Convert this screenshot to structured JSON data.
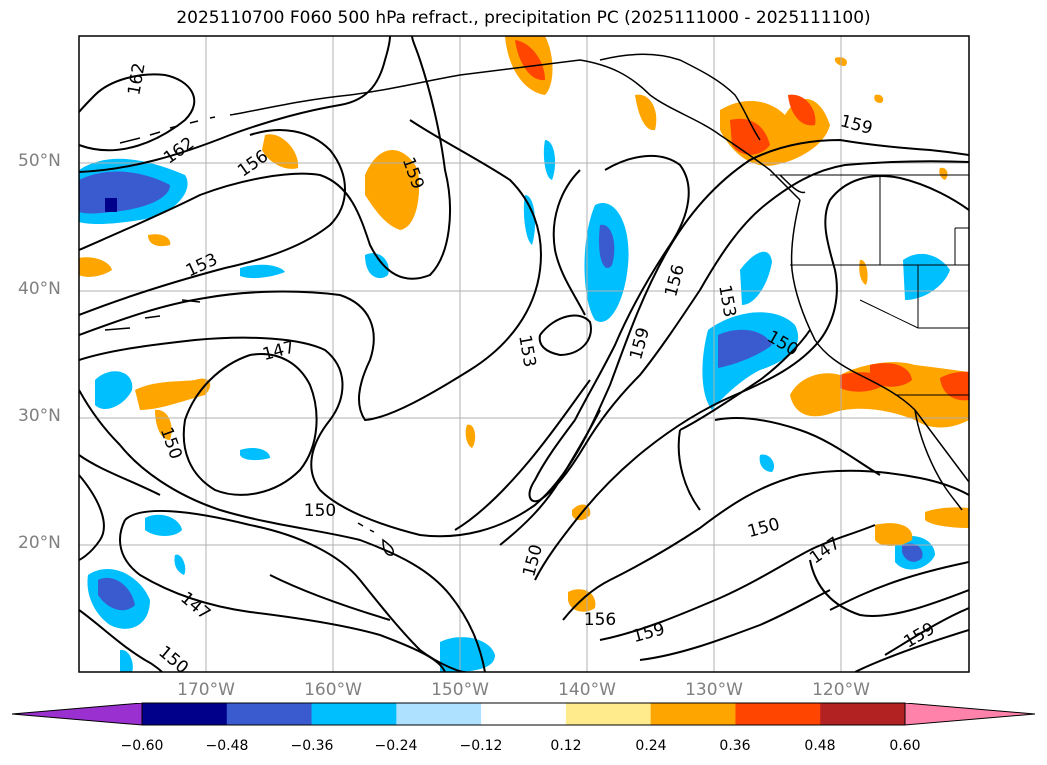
{
  "title": "2025110700 F060 500 hPa refract., precipitation PC (2025111000 - 2025111100)",
  "axes": {
    "lat_labels": [
      "50°N",
      "40°N",
      "30°N",
      "20°N"
    ],
    "lon_labels": [
      "170°W",
      "160°W",
      "150°W",
      "140°W",
      "130°W",
      "120°W"
    ]
  },
  "contour_labels": [
    "162",
    "162",
    "156",
    "159",
    "153",
    "147",
    "150",
    "153",
    "159",
    "156",
    "153",
    "150",
    "159",
    "150",
    "150",
    "147",
    "150",
    "156",
    "159",
    "159",
    "147",
    "150"
  ],
  "colorbar": {
    "colors": [
      "#9b30d0",
      "#00008b",
      "#3a5bd0",
      "#00bfff",
      "#aee0ff",
      "#ffffff",
      "#ffea8c",
      "#ffa500",
      "#ff4500",
      "#b22222",
      "#ff82ab"
    ],
    "ticks": [
      "−0.60",
      "−0.48",
      "−0.36",
      "−0.24",
      "−0.12",
      "0.12",
      "0.24",
      "0.36",
      "0.48",
      "0.60"
    ]
  },
  "colors": {
    "frame": "#000000",
    "grid": "#b0b0b0",
    "contour": "#000000",
    "axis_text": "#808080"
  }
}
